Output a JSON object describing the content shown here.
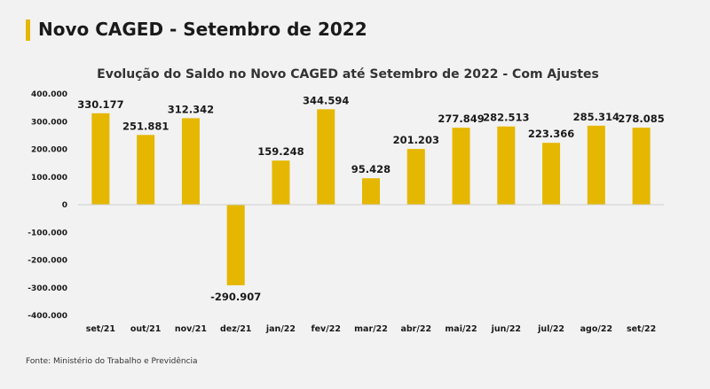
{
  "header": {
    "title": "Novo CAGED - Setembro de 2022"
  },
  "source_note": "Fonte: Ministério do Trabalho e Previdência",
  "colors": {
    "accent": "#e5b700",
    "bar": "#e5b700",
    "text": "#1a1a1a"
  },
  "chart_data": {
    "type": "bar",
    "title": "Evolução do Saldo no Novo CAGED até Setembro de 2022 - Com Ajustes",
    "xlabel": "",
    "ylabel": "",
    "ylim": [
      -400000,
      400000
    ],
    "yticks": [
      400000,
      300000,
      200000,
      100000,
      0,
      -100000,
      -200000,
      -300000,
      -400000
    ],
    "ytick_labels": [
      "400.000",
      "300.000",
      "200.000",
      "100.000",
      "0",
      "-100.000",
      "-200.000",
      "-300.000",
      "-400.000"
    ],
    "categories": [
      "set/21",
      "out/21",
      "nov/21",
      "dez/21",
      "jan/22",
      "fev/22",
      "mar/22",
      "abr/22",
      "mai/22",
      "jun/22",
      "jul/22",
      "ago/22",
      "set/22"
    ],
    "values": [
      330177,
      251881,
      312342,
      -290907,
      159248,
      344594,
      95428,
      201203,
      277849,
      282513,
      223366,
      285314,
      278085
    ],
    "value_labels": [
      "330.177",
      "251.881",
      "312.342",
      "-290.907",
      "159.248",
      "344.594",
      "95.428",
      "201.203",
      "277.849",
      "282.513",
      "223.366",
      "285.314",
      "278.085"
    ],
    "grid": false,
    "legend": "none"
  }
}
